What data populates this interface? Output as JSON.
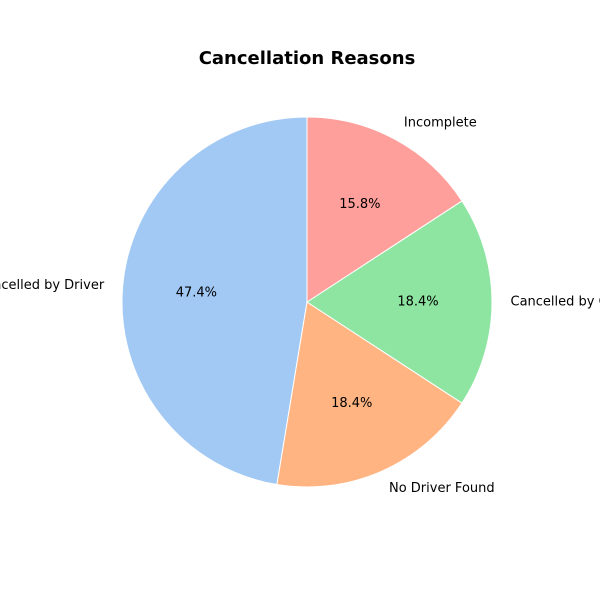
{
  "chart_data": {
    "type": "pie",
    "title": "Cancellation Reasons",
    "start_angle_deg": 90,
    "direction": "counterclockwise",
    "slices": [
      {
        "label": "Cancelled by Driver",
        "value": 47.4,
        "pct_label": "47.4%",
        "color": "#a1c9f4"
      },
      {
        "label": "No Driver Found",
        "value": 18.4,
        "pct_label": "18.4%",
        "color": "#ffb482"
      },
      {
        "label": "Cancelled by Customer",
        "value": 18.4,
        "pct_label": "18.4%",
        "color": "#8de5a1"
      },
      {
        "label": "Incomplete",
        "value": 15.8,
        "pct_label": "15.8%",
        "color": "#ff9f9b"
      }
    ]
  }
}
